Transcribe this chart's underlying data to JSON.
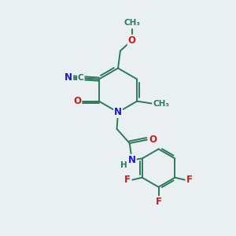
{
  "background_color": "#eaeff2",
  "bond_color": "#2d7a5a",
  "atom_colors": {
    "N": "#1a1acc",
    "O": "#cc1a1a",
    "F": "#cc1a1a",
    "C": "#2d7a5a",
    "H": "#2d7a5a"
  },
  "lw": 1.4
}
